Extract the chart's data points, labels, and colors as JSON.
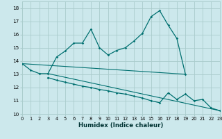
{
  "xlabel": "Humidex (Indice chaleur)",
  "xlim": [
    0,
    23
  ],
  "ylim": [
    10,
    18.5
  ],
  "yticks": [
    10,
    11,
    12,
    13,
    14,
    15,
    16,
    17,
    18
  ],
  "xticks": [
    0,
    1,
    2,
    3,
    4,
    5,
    6,
    7,
    8,
    9,
    10,
    11,
    12,
    13,
    14,
    15,
    16,
    17,
    18,
    19,
    20,
    21,
    22,
    23
  ],
  "bg_color": "#cce8ec",
  "grid_color": "#aacccc",
  "line_color": "#007070",
  "lines": [
    {
      "x": [
        0,
        1,
        2,
        3,
        4,
        5,
        6,
        7,
        8,
        9,
        10,
        11,
        12,
        13,
        14,
        15,
        16,
        17,
        18,
        19
      ],
      "y": [
        13.8,
        13.3,
        13.05,
        13.05,
        14.3,
        14.75,
        15.35,
        15.35,
        16.4,
        15.0,
        14.45,
        14.8,
        15.0,
        15.5,
        16.1,
        17.35,
        17.8,
        16.7,
        15.7,
        13.0
      ],
      "marker": true,
      "lw": 0.9
    },
    {
      "x": [
        0,
        19
      ],
      "y": [
        13.8,
        13.0
      ],
      "marker": false,
      "lw": 0.8
    },
    {
      "x": [
        3,
        4,
        5,
        6,
        7,
        8,
        9,
        10,
        11,
        12,
        13,
        14,
        15,
        16,
        17,
        18,
        19,
        20,
        21,
        22,
        23
      ],
      "y": [
        12.75,
        12.55,
        12.4,
        12.25,
        12.1,
        12.0,
        11.85,
        11.75,
        11.6,
        11.5,
        11.35,
        11.2,
        11.0,
        10.85,
        11.6,
        11.1,
        11.5,
        11.0,
        11.1,
        10.45,
        10.25
      ],
      "marker": true,
      "lw": 0.9
    },
    {
      "x": [
        3,
        23
      ],
      "y": [
        13.05,
        10.25
      ],
      "marker": false,
      "lw": 0.8
    }
  ]
}
